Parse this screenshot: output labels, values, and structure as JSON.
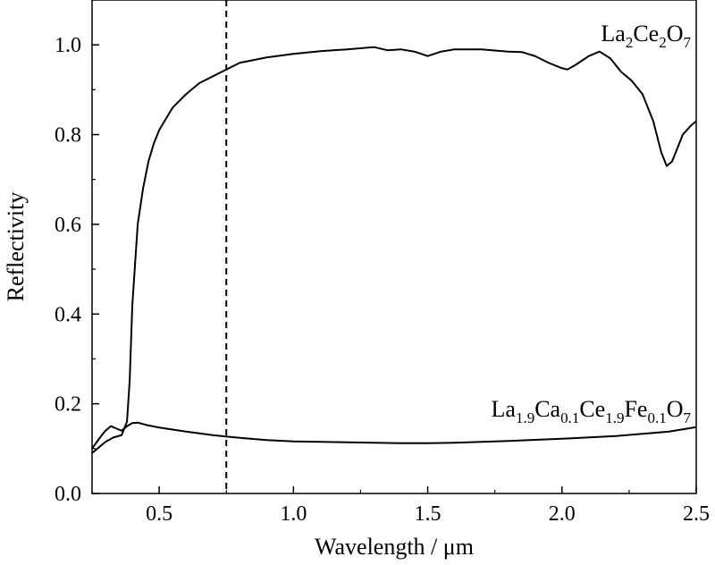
{
  "chart_data": {
    "type": "line",
    "xlabel": "Wavelength / μm",
    "ylabel": "Reflectivity",
    "xlim": [
      0.25,
      2.5
    ],
    "ylim": [
      0.0,
      1.1
    ],
    "x_ticks": [
      0.5,
      1.0,
      1.5,
      2.0,
      2.5
    ],
    "x_tick_labels": [
      "0.5",
      "1.0",
      "1.5",
      "2.0",
      "2.5"
    ],
    "y_ticks": [
      0.0,
      0.2,
      0.4,
      0.6,
      0.8,
      1.0
    ],
    "y_tick_labels": [
      "0.0",
      "0.2",
      "0.4",
      "0.6",
      "0.8",
      "1.0"
    ],
    "reference_line": {
      "x": 0.75,
      "style": "dashed"
    },
    "grid": false,
    "series": [
      {
        "name": "La2Ce2O7",
        "label_parts": [
          {
            "text": "La",
            "sub": false
          },
          {
            "text": "2",
            "sub": true
          },
          {
            "text": "Ce",
            "sub": false
          },
          {
            "text": "2",
            "sub": true
          },
          {
            "text": "O",
            "sub": false
          },
          {
            "text": "7",
            "sub": true
          }
        ],
        "x": [
          0.25,
          0.3,
          0.33,
          0.36,
          0.38,
          0.39,
          0.4,
          0.42,
          0.44,
          0.46,
          0.48,
          0.5,
          0.55,
          0.6,
          0.65,
          0.7,
          0.75,
          0.8,
          0.9,
          1.0,
          1.1,
          1.2,
          1.3,
          1.35,
          1.4,
          1.45,
          1.5,
          1.55,
          1.6,
          1.7,
          1.8,
          1.85,
          1.9,
          1.95,
          2.0,
          2.02,
          2.05,
          2.1,
          2.14,
          2.18,
          2.22,
          2.26,
          2.3,
          2.34,
          2.37,
          2.39,
          2.41,
          2.43,
          2.45,
          2.48,
          2.5
        ],
        "y": [
          0.09,
          0.115,
          0.125,
          0.13,
          0.16,
          0.25,
          0.42,
          0.6,
          0.68,
          0.74,
          0.78,
          0.81,
          0.86,
          0.89,
          0.915,
          0.93,
          0.945,
          0.96,
          0.972,
          0.98,
          0.986,
          0.99,
          0.995,
          0.988,
          0.99,
          0.985,
          0.975,
          0.985,
          0.99,
          0.99,
          0.985,
          0.984,
          0.975,
          0.96,
          0.948,
          0.945,
          0.955,
          0.975,
          0.985,
          0.97,
          0.94,
          0.92,
          0.89,
          0.83,
          0.76,
          0.73,
          0.74,
          0.77,
          0.8,
          0.82,
          0.83
        ]
      },
      {
        "name": "La1.9Ca0.1Ce1.9Fe0.1O7",
        "label_parts": [
          {
            "text": "La",
            "sub": false
          },
          {
            "text": "1.9",
            "sub": true
          },
          {
            "text": "Ca",
            "sub": false
          },
          {
            "text": "0.1",
            "sub": true
          },
          {
            "text": "Ce",
            "sub": false
          },
          {
            "text": "1.9",
            "sub": true
          },
          {
            "text": "Fe",
            "sub": false
          },
          {
            "text": "0.1",
            "sub": true
          },
          {
            "text": "O",
            "sub": false
          },
          {
            "text": "7",
            "sub": true
          }
        ],
        "x": [
          0.25,
          0.28,
          0.3,
          0.32,
          0.34,
          0.36,
          0.38,
          0.4,
          0.42,
          0.45,
          0.5,
          0.6,
          0.7,
          0.8,
          0.9,
          1.0,
          1.2,
          1.4,
          1.5,
          1.6,
          1.8,
          2.0,
          2.2,
          2.4,
          2.5
        ],
        "y": [
          0.1,
          0.125,
          0.14,
          0.15,
          0.145,
          0.14,
          0.15,
          0.157,
          0.158,
          0.153,
          0.147,
          0.138,
          0.13,
          0.124,
          0.119,
          0.116,
          0.114,
          0.112,
          0.112,
          0.113,
          0.117,
          0.122,
          0.128,
          0.138,
          0.148
        ]
      }
    ]
  }
}
